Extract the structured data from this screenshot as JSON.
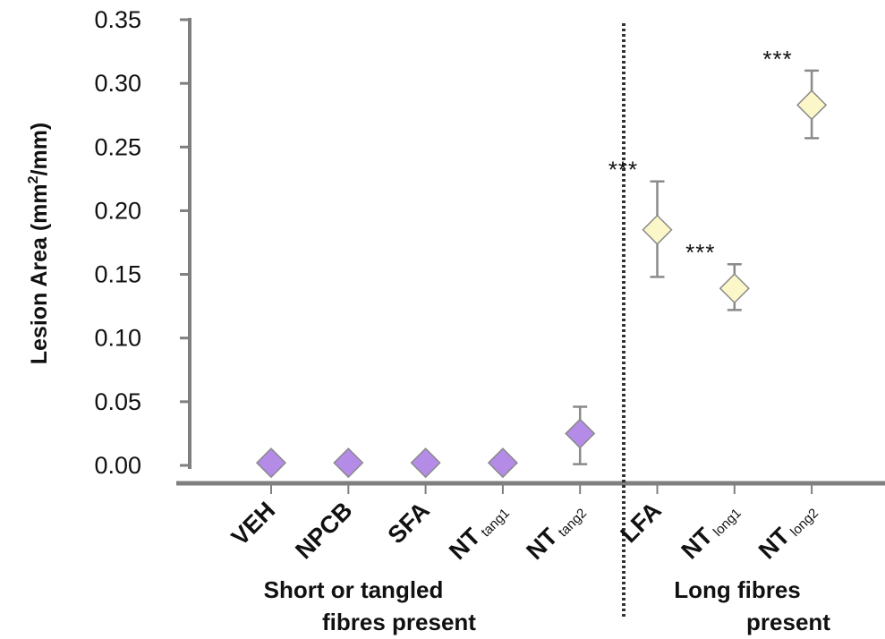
{
  "chart_data": {
    "type": "scatter",
    "ylabel": "Lesion Area (mm",
    "ylabel_sup": "2",
    "ylabel_tail": "/mm)",
    "ylim": [
      0,
      0.35
    ],
    "y_ticks": [
      "0.00",
      "0.05",
      "0.10",
      "0.15",
      "0.20",
      "0.25",
      "0.30",
      "0.35"
    ],
    "y_tick_values": [
      0,
      0.05,
      0.1,
      0.15,
      0.2,
      0.25,
      0.3,
      0.35
    ],
    "categories": [
      {
        "main": "VEH",
        "sub": ""
      },
      {
        "main": "NPCB",
        "sub": ""
      },
      {
        "main": "SFA",
        "sub": ""
      },
      {
        "main": "NT",
        "sub": "tang1"
      },
      {
        "main": "NT",
        "sub": "tang2"
      },
      {
        "main": "LFA",
        "sub": ""
      },
      {
        "main": "NT",
        "sub": "long1"
      },
      {
        "main": "NT",
        "sub": "long2"
      }
    ],
    "values": [
      0.002,
      0.002,
      0.002,
      0.002,
      0.025,
      0.185,
      0.139,
      0.283
    ],
    "error_upper": [
      null,
      null,
      null,
      null,
      0.046,
      0.223,
      0.158,
      0.31
    ],
    "error_lower": [
      null,
      null,
      null,
      null,
      0.001,
      0.148,
      0.122,
      0.257
    ],
    "significance": [
      "",
      "",
      "",
      "",
      "",
      "***",
      "***",
      "***"
    ],
    "marker_colors": [
      "#b48be6",
      "#b48be6",
      "#b48be6",
      "#b48be6",
      "#b48be6",
      "#fbf7c8",
      "#fbf7c8",
      "#fbf7c8"
    ],
    "marker_stroke": "#8a8a8a",
    "groups": [
      {
        "line1": "Short or tangled",
        "line2": "fibres present"
      },
      {
        "line1": "Long fibres",
        "line2": "present"
      }
    ],
    "divider": "dotted vertical line between NT tang2 and LFA",
    "grid": false
  }
}
